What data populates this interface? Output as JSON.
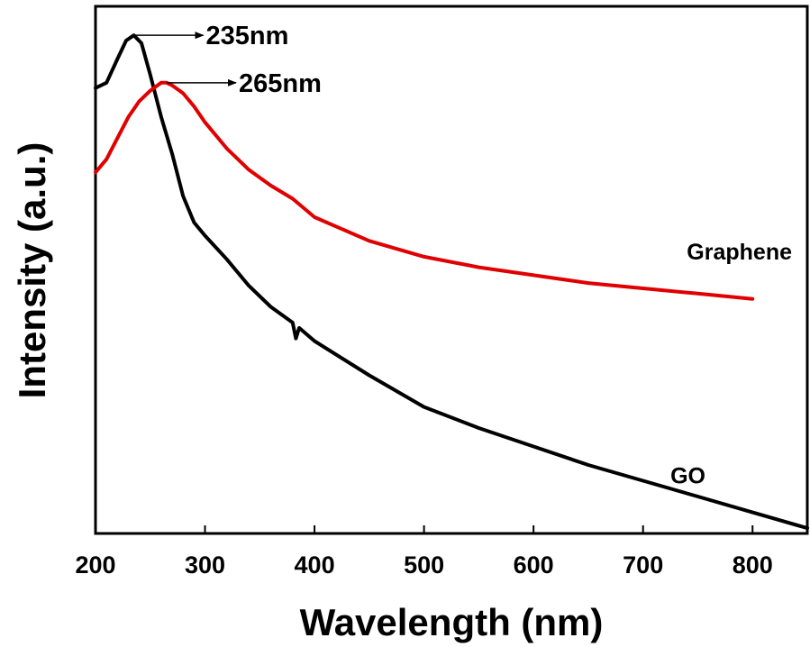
{
  "chart_data": {
    "type": "line",
    "xlabel": "Wavelength (nm)",
    "ylabel": "Intensity (a.u.)",
    "xlim": [
      200,
      850
    ],
    "xticks": [
      200,
      300,
      400,
      500,
      600,
      700,
      800
    ],
    "ylim": [
      0,
      1
    ],
    "yticks_shown": false,
    "grid": false,
    "legend": "none",
    "series": [
      {
        "name": "GO",
        "color": "#000000",
        "x": [
          200,
          210,
          220,
          228,
          235,
          242,
          250,
          260,
          270,
          280,
          290,
          300,
          320,
          340,
          360,
          380,
          383,
          386,
          400,
          450,
          500,
          550,
          600,
          650,
          700,
          750,
          800,
          850
        ],
        "y": [
          0.845,
          0.855,
          0.9,
          0.935,
          0.945,
          0.93,
          0.87,
          0.79,
          0.72,
          0.64,
          0.59,
          0.565,
          0.52,
          0.47,
          0.43,
          0.4,
          0.37,
          0.39,
          0.365,
          0.3,
          0.24,
          0.2,
          0.165,
          0.13,
          0.1,
          0.07,
          0.04,
          0.01
        ]
      },
      {
        "name": "Graphene",
        "color": "#e00000",
        "x": [
          200,
          210,
          220,
          230,
          240,
          250,
          260,
          265,
          270,
          280,
          290,
          300,
          320,
          340,
          360,
          380,
          400,
          450,
          500,
          550,
          600,
          650,
          700,
          750,
          800
        ],
        "y": [
          0.685,
          0.71,
          0.75,
          0.79,
          0.82,
          0.84,
          0.855,
          0.855,
          0.85,
          0.835,
          0.81,
          0.78,
          0.73,
          0.69,
          0.66,
          0.635,
          0.6,
          0.555,
          0.525,
          0.505,
          0.49,
          0.475,
          0.465,
          0.455,
          0.445
        ]
      }
    ],
    "annotations": [
      {
        "text": "235nm",
        "x": 235,
        "y": 0.945
      },
      {
        "text": "265nm",
        "x": 265,
        "y": 0.855
      }
    ],
    "series_labels": [
      {
        "text": "Graphene",
        "x": 740,
        "y": 0.52
      },
      {
        "text": "GO",
        "x": 725,
        "y": 0.095
      }
    ]
  }
}
